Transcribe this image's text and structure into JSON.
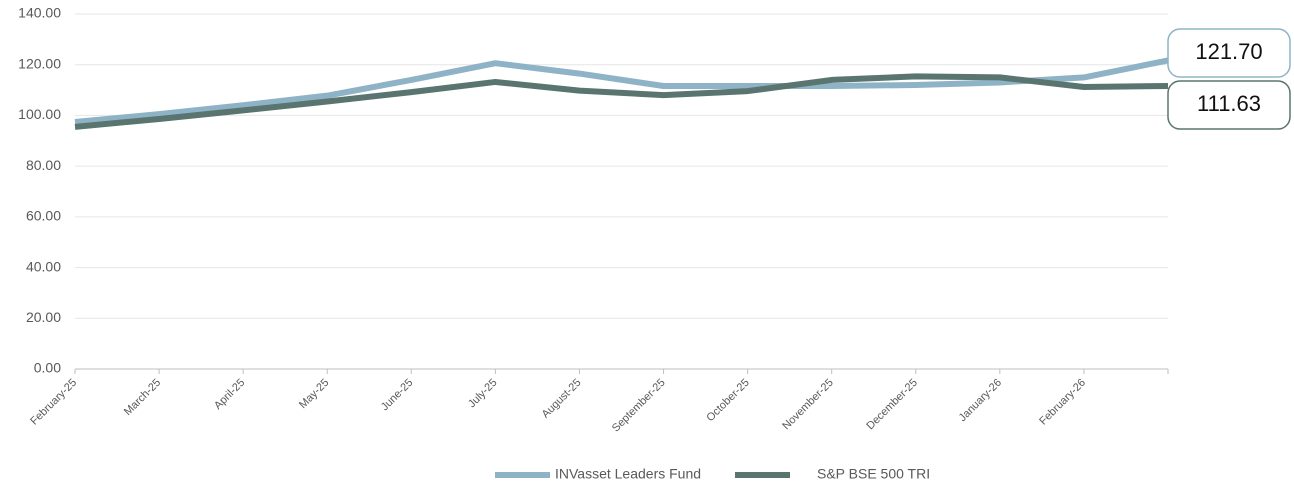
{
  "chart_data": {
    "type": "line",
    "categories": [
      "February-25",
      "March-25",
      "April-25",
      "May-25",
      "June-25",
      "July-25",
      "August-25",
      "September-25",
      "October-25",
      "November-25",
      "December-25",
      "January-26",
      "February-26",
      null
    ],
    "series": [
      {
        "name": "INVasset Leaders Fund",
        "color": "#8fb3c6",
        "values": [
          97.4,
          100.5,
          104,
          107.8,
          114,
          120.6,
          116.5,
          111.6,
          111.6,
          111.6,
          112,
          113,
          115,
          121.7
        ],
        "value_labels": [
          null,
          null,
          null,
          null,
          null,
          null,
          null,
          null,
          null,
          null,
          null,
          null,
          null,
          "121.70"
        ]
      },
      {
        "name": "S&P BSE 500 TRI",
        "color": "#5a7570",
        "values": [
          95.5,
          98.6,
          102,
          105.5,
          109.2,
          113.2,
          109.8,
          108,
          109.6,
          114,
          115.4,
          115,
          111.2,
          111.63
        ],
        "value_labels": [
          null,
          null,
          null,
          null,
          null,
          null,
          null,
          null,
          null,
          null,
          null,
          null,
          null,
          "111.63"
        ]
      }
    ],
    "ylim": [
      0,
      140
    ],
    "yticks": [
      {
        "value": 0,
        "label": "0.00"
      },
      {
        "value": 20,
        "label": "20.00"
      },
      {
        "value": 40,
        "label": "40.00"
      },
      {
        "value": 60,
        "label": "60.00"
      },
      {
        "value": 80,
        "label": "80.00"
      },
      {
        "value": 100,
        "label": "100.00"
      },
      {
        "value": 120,
        "label": "120.00"
      },
      {
        "value": 140,
        "label": "140.00"
      }
    ],
    "grid": true,
    "legend": "bottom"
  }
}
